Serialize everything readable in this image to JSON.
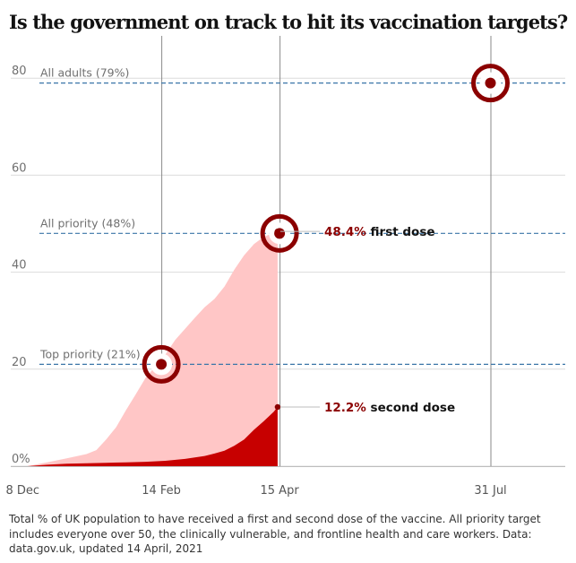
{
  "title": "Is the government on track to hit its vaccination targets?",
  "caption": "Total % of UK population to have received a first and second dose of the vaccine. All priority target includes everyone over 50, the clinically vulnerable, and frontline health and care workers. Data: data.gov.uk, updated 14 April, 2021",
  "colors": {
    "first_dose_fill": "#ffc6c6",
    "second_dose_fill": "#c70000",
    "target_ring": "#8b0000",
    "target_line": "#3a75a8",
    "grid": "#dcdcdc",
    "value_text": "#8b0000"
  },
  "chart_data": {
    "type": "area",
    "title": "Is the government on track to hit its vaccination targets?",
    "xlabel": "",
    "ylabel": "",
    "ylim": [
      0,
      90
    ],
    "x_ticks": [
      {
        "label": "8 Dec",
        "day": 0
      },
      {
        "label": "14 Feb",
        "day": 68
      },
      {
        "label": "15 Apr",
        "day": 128
      },
      {
        "label": "31 Jul",
        "day": 235
      }
    ],
    "y_ticks": [
      {
        "label": "0%",
        "value": 0
      },
      {
        "label": "20",
        "value": 20
      },
      {
        "label": "40",
        "value": 40
      },
      {
        "label": "60",
        "value": 60
      },
      {
        "label": "80",
        "value": 80
      }
    ],
    "series": [
      {
        "name": "first dose",
        "values": [
          [
            0,
            0
          ],
          [
            10,
            0.8
          ],
          [
            20,
            1.6
          ],
          [
            30,
            2.5
          ],
          [
            35,
            3.3
          ],
          [
            40,
            5.5
          ],
          [
            45,
            8
          ],
          [
            50,
            11.5
          ],
          [
            55,
            14.8
          ],
          [
            60,
            18.2
          ],
          [
            65,
            20.6
          ],
          [
            70,
            23
          ],
          [
            75,
            26
          ],
          [
            80,
            28.3
          ],
          [
            85,
            30.6
          ],
          [
            90,
            32.8
          ],
          [
            95,
            34.5
          ],
          [
            100,
            37
          ],
          [
            105,
            40.5
          ],
          [
            110,
            43.5
          ],
          [
            115,
            45.8
          ],
          [
            120,
            47.3
          ],
          [
            125,
            48.1
          ],
          [
            127,
            48.4
          ]
        ]
      },
      {
        "name": "second dose",
        "values": [
          [
            0,
            0
          ],
          [
            10,
            0.3
          ],
          [
            20,
            0.5
          ],
          [
            30,
            0.6
          ],
          [
            40,
            0.7
          ],
          [
            50,
            0.8
          ],
          [
            60,
            0.9
          ],
          [
            70,
            1.1
          ],
          [
            80,
            1.5
          ],
          [
            90,
            2.1
          ],
          [
            95,
            2.6
          ],
          [
            100,
            3.2
          ],
          [
            105,
            4.2
          ],
          [
            110,
            5.5
          ],
          [
            115,
            7.5
          ],
          [
            120,
            9.3
          ],
          [
            125,
            11.2
          ],
          [
            127,
            12.2
          ]
        ]
      }
    ],
    "targets": [
      {
        "label": "Top priority (21%)",
        "value": 21,
        "day": 68
      },
      {
        "label": "All priority (48%)",
        "value": 48,
        "day": 128
      },
      {
        "label": "All adults (79%)",
        "value": 79,
        "day": 235
      }
    ],
    "annotations": [
      {
        "value_text": "48.4%",
        "rest_text": " first dose",
        "value": 48.4,
        "day": 127
      },
      {
        "value_text": "12.2%",
        "rest_text": " second dose",
        "value": 12.2,
        "day": 127
      }
    ]
  }
}
